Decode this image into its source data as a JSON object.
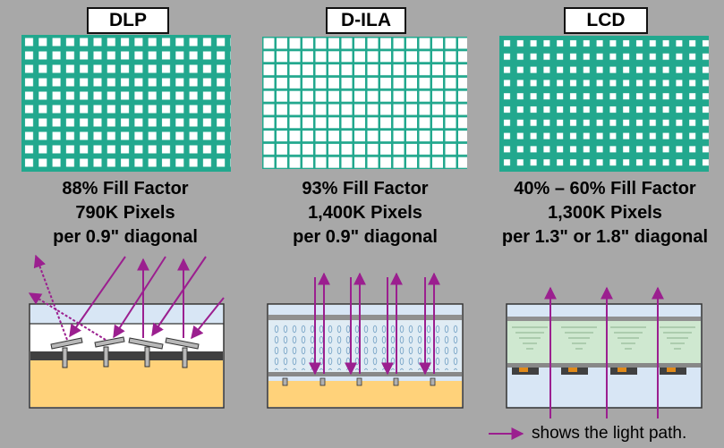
{
  "panels": [
    {
      "title": "DLP",
      "fill_factor": "88% Fill Factor",
      "pixels": "790K Pixels",
      "diagonal": "per 0.9\" diagonal"
    },
    {
      "title": "D-ILA",
      "fill_factor": "93% Fill Factor",
      "pixels": "1,400K Pixels",
      "diagonal": "per 0.9\" diagonal"
    },
    {
      "title": "LCD",
      "fill_factor": "40% – 60% Fill Factor",
      "pixels": "1,300K Pixels",
      "diagonal": "per 1.3\" or 1.8\" diagonal"
    }
  ],
  "legend": {
    "text": "shows the light path."
  },
  "colors": {
    "background": "#a8a8a8",
    "pixel_grid": "#22a88e",
    "light_arrow": "#9b1f8f",
    "substrate": "#ffd27a",
    "glass": "#d8e6f5",
    "liquid_crystal": "#cfe8d0"
  }
}
